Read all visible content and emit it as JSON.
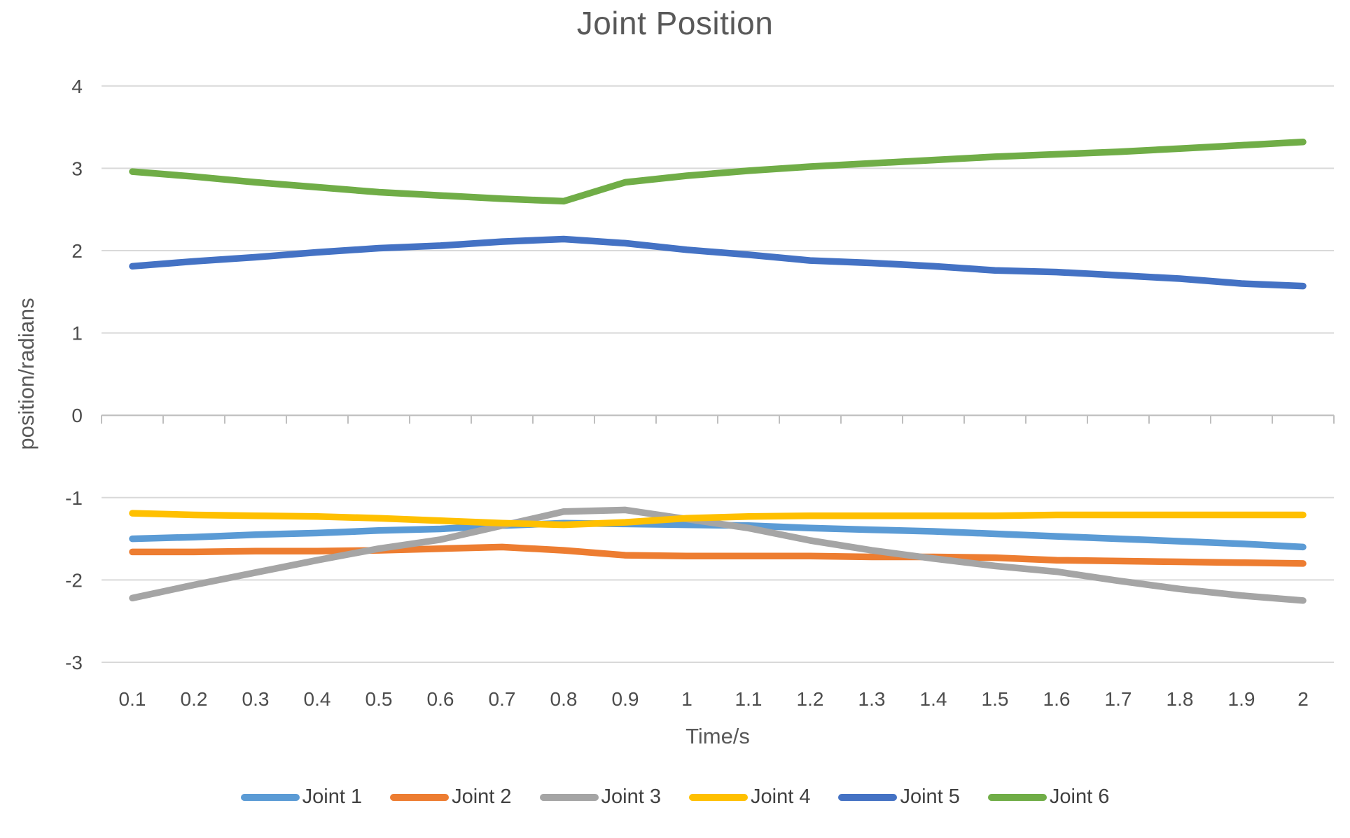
{
  "chart_data": {
    "type": "line",
    "title": "Joint Position",
    "xlabel": "Time/s",
    "ylabel": "position/radians",
    "grid": true,
    "legend_position": "bottom",
    "ylim": [
      -3,
      4
    ],
    "y_ticks": [
      4,
      3,
      2,
      1,
      0,
      -1,
      -2,
      -3
    ],
    "x": [
      0.1,
      0.2,
      0.3,
      0.4,
      0.5,
      0.6,
      0.7,
      0.8,
      0.9,
      1.0,
      1.1,
      1.2,
      1.3,
      1.4,
      1.5,
      1.6,
      1.7,
      1.8,
      1.9,
      2.0
    ],
    "x_tick_labels": [
      "0.1",
      "0.2",
      "0.3",
      "0.4",
      "0.5",
      "0.6",
      "0.7",
      "0.8",
      "0.9",
      "1",
      "1.1",
      "1.2",
      "1.3",
      "1.4",
      "1.5",
      "1.6",
      "1.7",
      "1.8",
      "1.9",
      "2"
    ],
    "series": [
      {
        "name": "Joint 1",
        "color": "#5B9BD5",
        "values": [
          -1.5,
          -1.48,
          -1.45,
          -1.43,
          -1.4,
          -1.38,
          -1.34,
          -1.31,
          -1.32,
          -1.33,
          -1.34,
          -1.37,
          -1.39,
          -1.41,
          -1.44,
          -1.47,
          -1.5,
          -1.53,
          -1.56,
          -1.6
        ]
      },
      {
        "name": "Joint 2",
        "color": "#ED7D31",
        "values": [
          -1.66,
          -1.66,
          -1.65,
          -1.65,
          -1.64,
          -1.62,
          -1.6,
          -1.64,
          -1.7,
          -1.71,
          -1.71,
          -1.71,
          -1.72,
          -1.72,
          -1.73,
          -1.76,
          -1.77,
          -1.78,
          -1.79,
          -1.8
        ]
      },
      {
        "name": "Joint 3",
        "color": "#A5A5A5",
        "values": [
          -2.22,
          -2.06,
          -1.91,
          -1.76,
          -1.62,
          -1.51,
          -1.34,
          -1.17,
          -1.15,
          -1.26,
          -1.37,
          -1.52,
          -1.64,
          -1.74,
          -1.83,
          -1.9,
          -2.01,
          -2.11,
          -2.19,
          -2.25
        ]
      },
      {
        "name": "Joint 4",
        "color": "#FFC000",
        "values": [
          -1.19,
          -1.21,
          -1.22,
          -1.23,
          -1.25,
          -1.28,
          -1.31,
          -1.33,
          -1.3,
          -1.25,
          -1.23,
          -1.22,
          -1.22,
          -1.22,
          -1.22,
          -1.21,
          -1.21,
          -1.21,
          -1.21,
          -1.21
        ]
      },
      {
        "name": "Joint 5",
        "color": "#4472C4",
        "values": [
          1.81,
          1.87,
          1.92,
          1.98,
          2.03,
          2.06,
          2.11,
          2.14,
          2.09,
          2.01,
          1.95,
          1.88,
          1.85,
          1.81,
          1.76,
          1.74,
          1.7,
          1.66,
          1.6,
          1.57
        ]
      },
      {
        "name": "Joint 6",
        "color": "#70AD47",
        "values": [
          2.96,
          2.9,
          2.83,
          2.77,
          2.71,
          2.67,
          2.63,
          2.6,
          2.83,
          2.91,
          2.97,
          3.02,
          3.06,
          3.1,
          3.14,
          3.17,
          3.2,
          3.24,
          3.28,
          3.32
        ]
      }
    ],
    "grid_color": "#D9D9D9",
    "axis_color": "#BFBFBF",
    "text_color": "#595959"
  }
}
